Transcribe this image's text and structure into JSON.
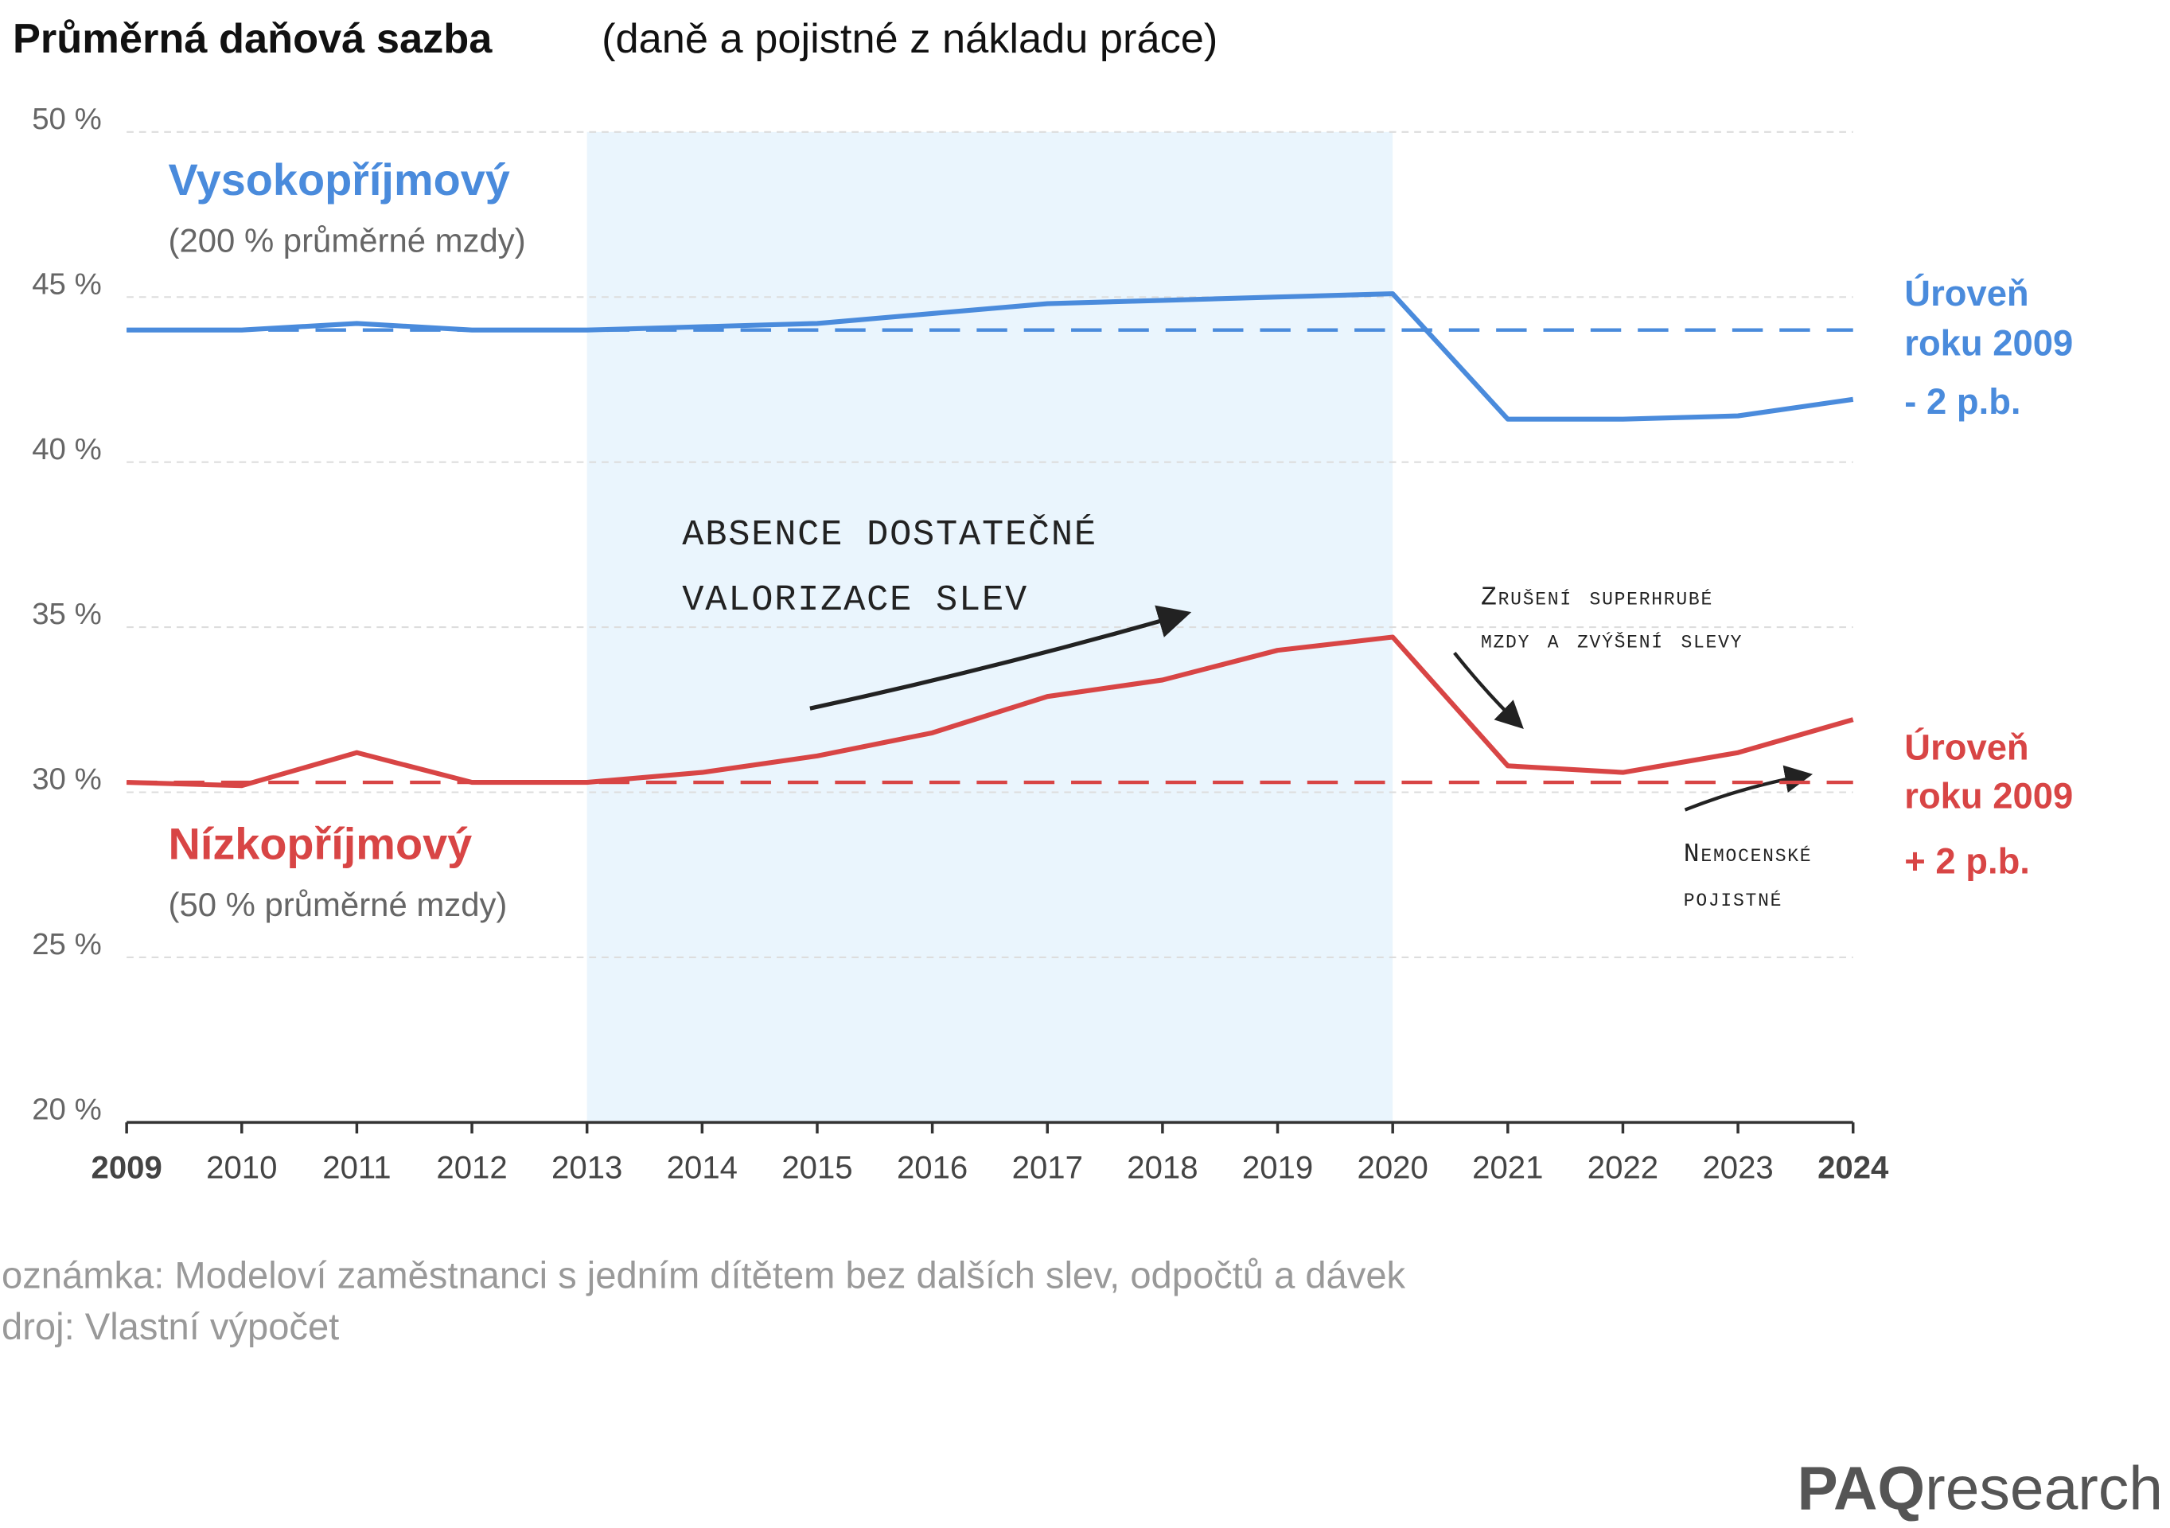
{
  "chart_data": {
    "type": "line",
    "title": "Průměrná daňová sazba",
    "subtitle": "(daně a pojistné z nákladu práce)",
    "categories": [
      "2009",
      "2010",
      "2011",
      "2012",
      "2013",
      "2014",
      "2015",
      "2016",
      "2017",
      "2018",
      "2019",
      "2020",
      "2021",
      "2022",
      "2023",
      "2024"
    ],
    "series": [
      {
        "name": "Vysokopříjmový",
        "description": "(200 % průměrné mzdy)",
        "color": "#4a8bdc",
        "values": [
          44.0,
          44.0,
          44.2,
          44.0,
          44.0,
          44.1,
          44.2,
          44.5,
          44.8,
          44.9,
          45.0,
          45.1,
          41.3,
          41.3,
          41.4,
          41.9
        ],
        "reference": 44.0,
        "reference_label": [
          "Úroveň",
          "roku 2009",
          "- 2 p.b."
        ]
      },
      {
        "name": "Nízkopříjmový",
        "description": "(50 % průměrné mzdy)",
        "color": "#d84545",
        "values": [
          30.3,
          30.2,
          31.2,
          30.3,
          30.3,
          30.6,
          31.1,
          31.8,
          32.9,
          33.4,
          34.3,
          34.7,
          30.8,
          30.6,
          31.2,
          32.2
        ],
        "reference": 30.3,
        "reference_label": [
          "Úroveň",
          "roku 2009",
          "+ 2 p.b."
        ]
      }
    ],
    "ylim": [
      20,
      50
    ],
    "yticks": [
      {
        "value": 20,
        "label": "20 %"
      },
      {
        "value": 25,
        "label": "25 %"
      },
      {
        "value": 30,
        "label": "30 %"
      },
      {
        "value": 35,
        "label": "35 %"
      },
      {
        "value": 40,
        "label": "40 %"
      },
      {
        "value": 45,
        "label": "45 %"
      },
      {
        "value": 50,
        "label": "50 %"
      }
    ],
    "grid": true,
    "highlight": [
      "2013",
      "2020"
    ],
    "annotations": [
      [
        "ABSENCE DOSTATEČNÉ",
        "VALORIZACE SLEV"
      ],
      [
        "Zrušení superhrubé",
        "mzdy a zvýšení slevy"
      ],
      [
        "Nemocenské",
        "pojistné"
      ]
    ]
  },
  "footer": {
    "note": "oznámka: Modeloví zaměstnanci s jedním dítětem bez dalších slev, odpočtů a dávek",
    "source": "droj: Vlastní výpočet"
  },
  "logo": {
    "bold": "PAQ",
    "rest": "research"
  }
}
